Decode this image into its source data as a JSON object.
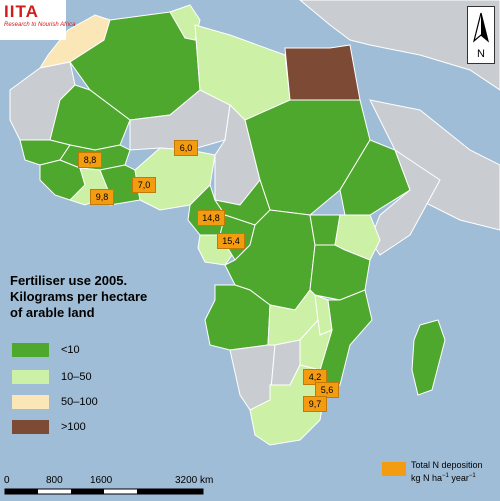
{
  "logo": {
    "main": "IITA",
    "tagline": "Research to Nourish Africa"
  },
  "north_arrow": {
    "label": "N"
  },
  "legend": {
    "title_lines": [
      "Fertiliser use 2005.",
      "Kilograms per hectare",
      "of arable land"
    ],
    "classes": [
      {
        "label": "<10",
        "color": "#4fa82e"
      },
      {
        "label": "10–50",
        "color": "#ccf0a5"
      },
      {
        "label": "50–100",
        "color": "#fbe6b8"
      },
      {
        "label": ">100",
        "color": "#7c4a35"
      }
    ],
    "no_data_color": "#c9cdd2"
  },
  "n_deposition": {
    "legend_line1": "Total N deposition",
    "legend_line2": "kg N ha",
    "unit_sup1": "−1",
    "unit_year": " year",
    "unit_sup2": "−1",
    "color": "#f39c12",
    "values": [
      "8,8",
      "6,0",
      "9,8",
      "7,0",
      "14,8",
      "15,4",
      "4,2",
      "5,6",
      "9,7"
    ]
  },
  "scale_bar": {
    "labels": [
      "0",
      "800",
      "1600",
      "3200 km"
    ]
  }
}
